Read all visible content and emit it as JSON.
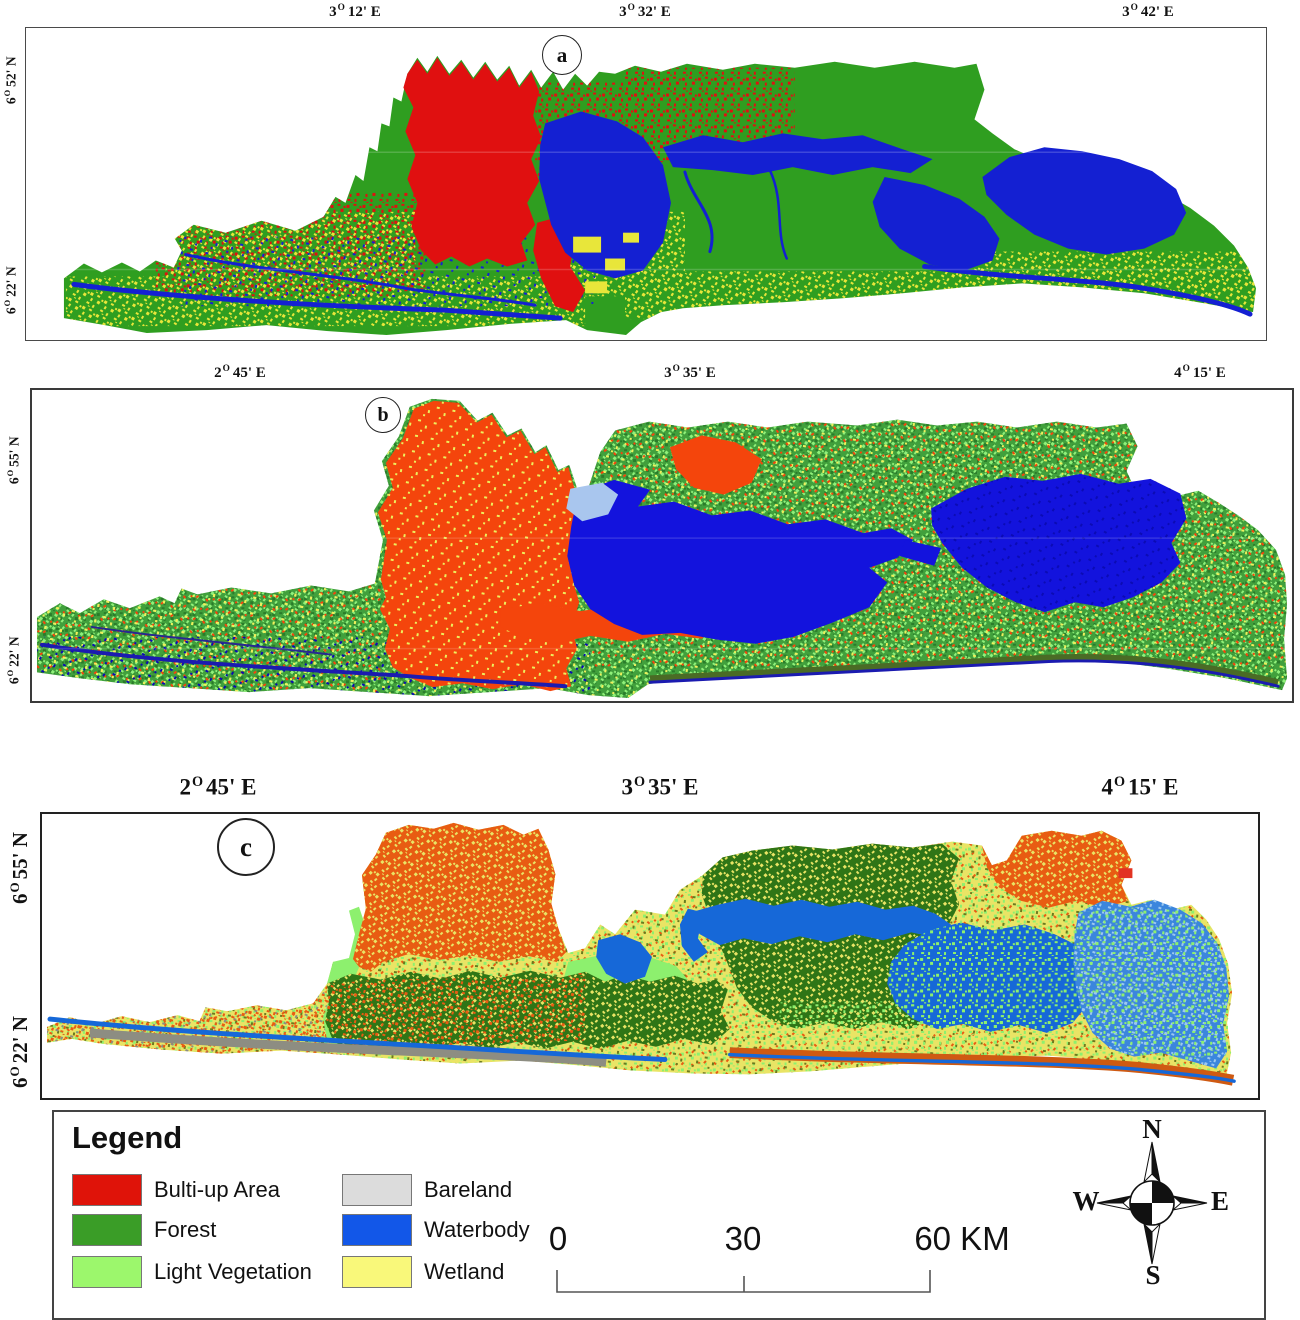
{
  "figure": {
    "panels": [
      {
        "letter": "a",
        "top": [
          {
            "deg": "3",
            "sup": "O",
            "rest": "12' E"
          },
          {
            "deg": "3",
            "sup": "O",
            "rest": "32' E"
          },
          {
            "deg": "3",
            "sup": "O",
            "rest": "42' E"
          }
        ],
        "left": [
          {
            "deg": "6",
            "sup": "O",
            "rest": "52' N"
          },
          {
            "deg": "6",
            "sup": "O",
            "rest": "22' N"
          }
        ]
      },
      {
        "letter": "b",
        "top": [
          {
            "deg": "2",
            "sup": "O",
            "rest": "45' E"
          },
          {
            "deg": "3",
            "sup": "O",
            "rest": "35' E"
          },
          {
            "deg": "4",
            "sup": "O",
            "rest": "15' E"
          }
        ],
        "left": [
          {
            "deg": "6",
            "sup": "O",
            "rest": "55' N"
          },
          {
            "deg": "6",
            "sup": "O",
            "rest": "22' N"
          }
        ]
      },
      {
        "letter": "c",
        "top": [
          {
            "deg": "2",
            "sup": "O",
            "rest": "45' E"
          },
          {
            "deg": "3",
            "sup": "O",
            "rest": "35' E"
          },
          {
            "deg": "4",
            "sup": "O",
            "rest": "15' E"
          }
        ],
        "left": [
          {
            "deg": "6",
            "sup": "O",
            "rest": "55' N"
          },
          {
            "deg": "6",
            "sup": "O",
            "rest": "22' N"
          }
        ]
      }
    ]
  },
  "legend": {
    "title": "Legend",
    "items": [
      {
        "label": "Bulti-up Area",
        "color": "#df1309"
      },
      {
        "label": "Forest",
        "color": "#3a9d27"
      },
      {
        "label": "Light Vegetation",
        "color": "#9cf76c"
      },
      {
        "label": "Bareland",
        "color": "#dcdcdc"
      },
      {
        "label": "Waterbody",
        "color": "#1257e8"
      },
      {
        "label": "Wetland",
        "color": "#f9f87a"
      }
    ]
  },
  "scale_bar": {
    "start": "0",
    "mid": "30",
    "end": "60 KM"
  },
  "compass": {
    "n": "N",
    "e": "E",
    "s": "S",
    "w": "W"
  }
}
